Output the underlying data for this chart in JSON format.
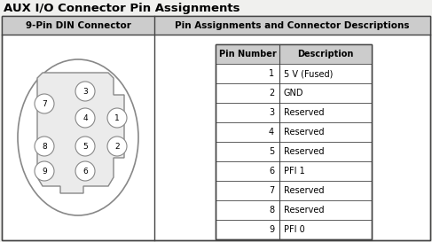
{
  "title": "AUX I/O Connector Pin Assignments",
  "col1_header": "9-Pin DIN Connector",
  "col2_header": "Pin Assignments and Connector Descriptions",
  "table_header": [
    "Pin Number",
    "Description"
  ],
  "table_data": [
    [
      "1",
      "5 V (Fused)"
    ],
    [
      "2",
      "GND"
    ],
    [
      "3",
      "Reserved"
    ],
    [
      "4",
      "Reserved"
    ],
    [
      "5",
      "Reserved"
    ],
    [
      "6",
      "PFI 1"
    ],
    [
      "7",
      "Reserved"
    ],
    [
      "8",
      "Reserved"
    ],
    [
      "9",
      "PFI 0"
    ]
  ],
  "bg_color": "#f0f0ee",
  "cell_bg": "#ffffff",
  "header_bg": "#cccccc",
  "border_color": "#888888",
  "dark_border": "#444444",
  "title_color": "#000000",
  "figw": 4.87,
  "figh": 2.73,
  "dpi": 100
}
